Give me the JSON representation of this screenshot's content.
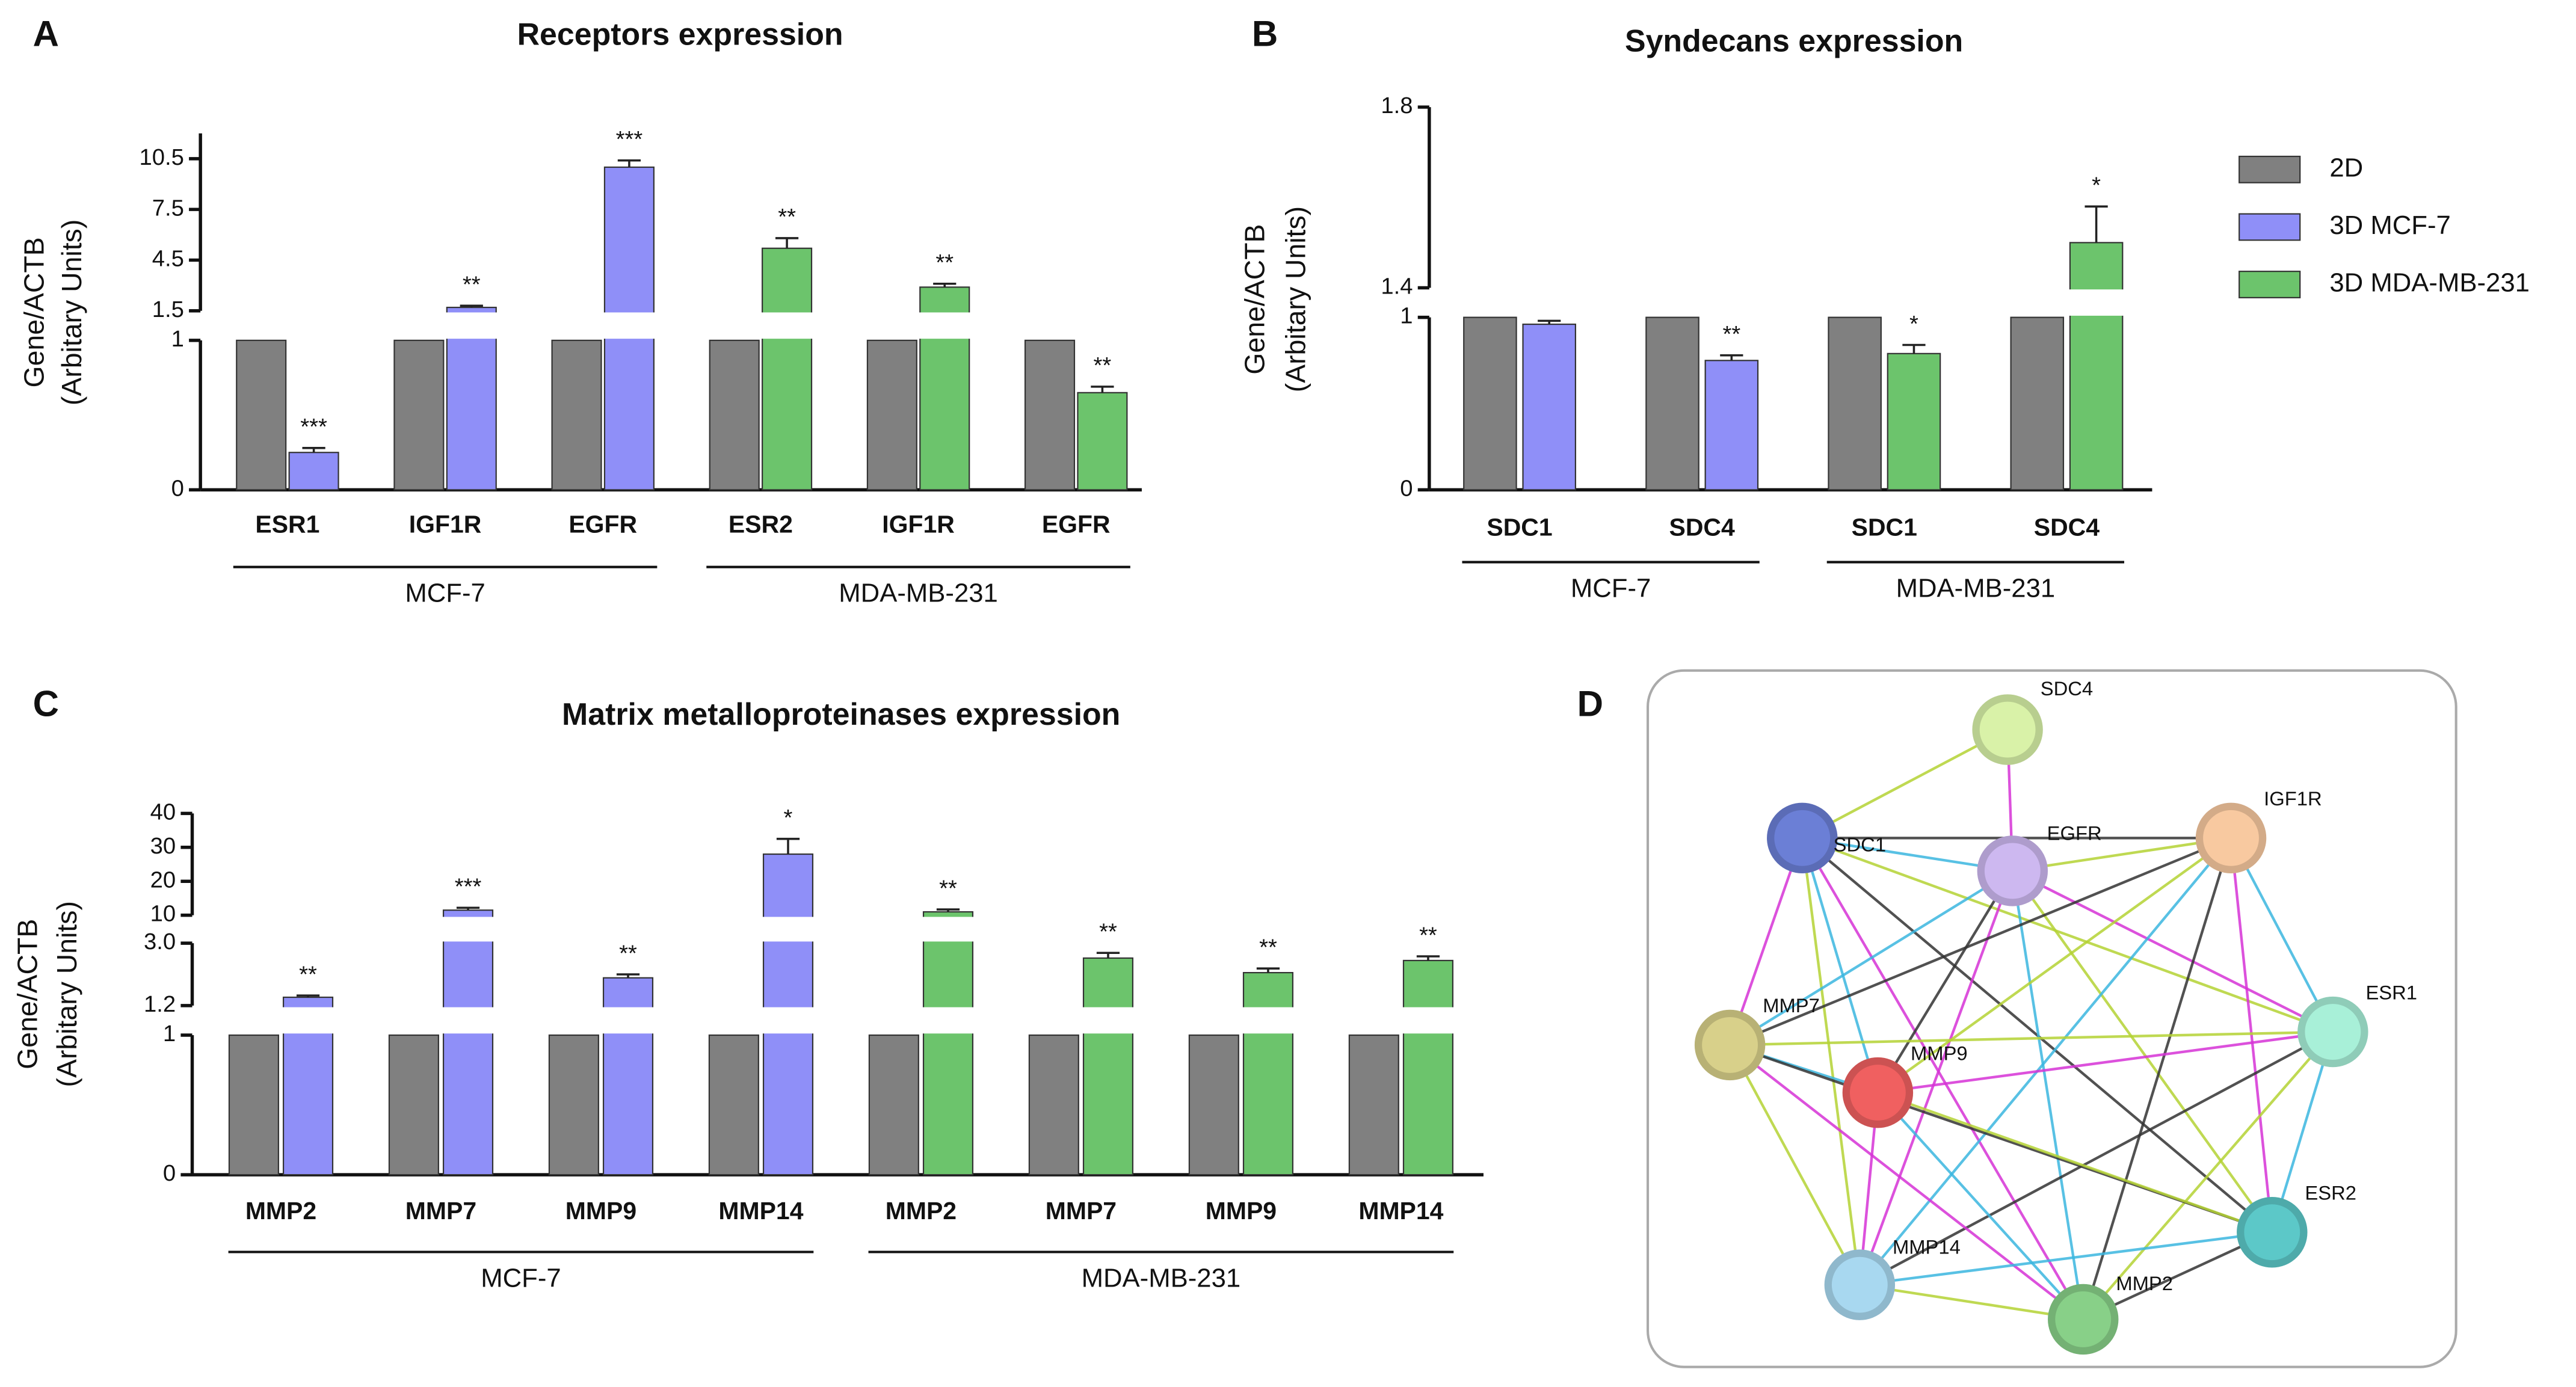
{
  "chart_data": [
    {
      "type": "broken-bar",
      "panel": "A",
      "title": "Receptors expression",
      "ylabel": [
        "Gene/ACTB",
        "(Arbitary Units)"
      ],
      "groups": [
        {
          "name": "MCF-7",
          "categories": [
            "ESR1",
            "IGF1R",
            "EGFR"
          ]
        },
        {
          "name": "MDA-MB-231",
          "categories": [
            "ESR2",
            "IGF1R",
            "EGFR"
          ]
        }
      ],
      "segments": [
        {
          "ylim": [
            0,
            1
          ],
          "yticks": [
            0,
            1
          ]
        },
        {
          "ylim": [
            1.5,
            12
          ],
          "yticks": [
            1.5,
            4.5,
            7.5,
            10.5
          ]
        }
      ],
      "series": [
        {
          "color": "#808080",
          "values": [
            1,
            1,
            1,
            1,
            1,
            1
          ]
        },
        {
          "color": "#8f8ff8",
          "values": [
            0.25,
            1.7,
            10,
            null,
            null,
            null
          ],
          "errors": [
            0.03,
            0.1,
            0.4,
            null,
            null,
            null
          ],
          "annotations": [
            "***",
            "**",
            "***",
            null,
            null,
            null
          ]
        },
        {
          "color": "#6cc46c",
          "values": [
            null,
            null,
            null,
            5.2,
            2.9,
            0.65
          ],
          "errors": [
            null,
            null,
            null,
            0.6,
            0.2,
            0.04
          ],
          "annotations": [
            null,
            null,
            null,
            "**",
            "**",
            "**"
          ]
        }
      ]
    },
    {
      "type": "broken-bar",
      "panel": "B",
      "title": "Syndecans expression",
      "ylabel": [
        "Gene/ACTB",
        "(Arbitary Units)"
      ],
      "groups": [
        {
          "name": "MCF-7",
          "categories": [
            "SDC1",
            "SDC4"
          ]
        },
        {
          "name": "MDA-MB-231",
          "categories": [
            "SDC1",
            "SDC4"
          ]
        }
      ],
      "segments": [
        {
          "ylim": [
            0,
            1
          ],
          "yticks": [
            0,
            1
          ]
        },
        {
          "ylim": [
            1.4,
            1.8
          ],
          "yticks": [
            1.4,
            1.8
          ]
        }
      ],
      "legend": "right",
      "series": [
        {
          "name": "2D",
          "color": "#808080",
          "values": [
            1,
            1,
            1,
            1
          ]
        },
        {
          "name": "3D MCF-7",
          "color": "#8f8ff8",
          "values": [
            0.96,
            0.75,
            null,
            null
          ],
          "errors": [
            0.02,
            0.03,
            null,
            null
          ],
          "annotations": [
            null,
            "**",
            null,
            null
          ]
        },
        {
          "name": "3D MDA-MB-231",
          "color": "#6cc46c",
          "values": [
            null,
            null,
            0.79,
            1.5
          ],
          "errors": [
            null,
            null,
            0.05,
            0.08
          ],
          "annotations": [
            null,
            null,
            "*",
            "*"
          ]
        }
      ]
    },
    {
      "type": "broken-bar",
      "panel": "C",
      "title": "Matrix metalloproteinases expression",
      "ylabel": [
        "Gene/ACTB",
        "(Arbitary Units)"
      ],
      "groups": [
        {
          "name": "MCF-7",
          "categories": [
            "MMP2",
            "MMP7",
            "MMP9",
            "MMP14"
          ]
        },
        {
          "name": "MDA-MB-231",
          "categories": [
            "MMP2",
            "MMP7",
            "MMP9",
            "MMP14"
          ]
        }
      ],
      "segments": [
        {
          "ylim": [
            0,
            1
          ],
          "yticks": [
            0,
            1
          ]
        },
        {
          "ylim": [
            1.2,
            3
          ],
          "yticks": [
            1.2,
            {
              "value": 3,
              "label": "3.0"
            }
          ]
        },
        {
          "ylim": [
            10,
            40
          ],
          "yticks": [
            10,
            20,
            30,
            40
          ]
        }
      ],
      "series": [
        {
          "color": "#808080",
          "values": [
            1,
            1,
            1,
            1,
            1,
            1,
            1,
            1
          ]
        },
        {
          "color": "#8f8ff8",
          "values": [
            1.44,
            11.5,
            2.0,
            28,
            null,
            null,
            null,
            null
          ],
          "errors": [
            0.05,
            0.7,
            0.1,
            4.5,
            null,
            null,
            null,
            null
          ],
          "annotations": [
            "**",
            "***",
            "**",
            "*",
            null,
            null,
            null,
            null
          ]
        },
        {
          "color": "#6cc46c",
          "values": [
            null,
            null,
            null,
            null,
            11,
            2.57,
            2.15,
            2.5
          ],
          "errors": [
            null,
            null,
            null,
            null,
            0.7,
            0.15,
            0.12,
            0.12
          ],
          "annotations": [
            null,
            null,
            null,
            null,
            "**",
            "**",
            "**",
            "**"
          ]
        }
      ]
    }
  ],
  "network": {
    "panel": "D",
    "nodes": [
      {
        "label": "SDC4",
        "color": "#d9f2a8"
      },
      {
        "label": "SDC1",
        "color": "#6b7fd6"
      },
      {
        "label": "EGFR",
        "color": "#cdb8f0"
      },
      {
        "label": "IGF1R",
        "color": "#f8c9a0"
      },
      {
        "label": "ESR1",
        "color": "#a8f0d8"
      },
      {
        "label": "MMP7",
        "color": "#d8d08a"
      },
      {
        "label": "MMP9",
        "color": "#f06060"
      },
      {
        "label": "ESR2",
        "color": "#5cc8c8"
      },
      {
        "label": "MMP14",
        "color": "#a8d8f0"
      },
      {
        "label": "MMP2",
        "color": "#88d088"
      }
    ]
  }
}
